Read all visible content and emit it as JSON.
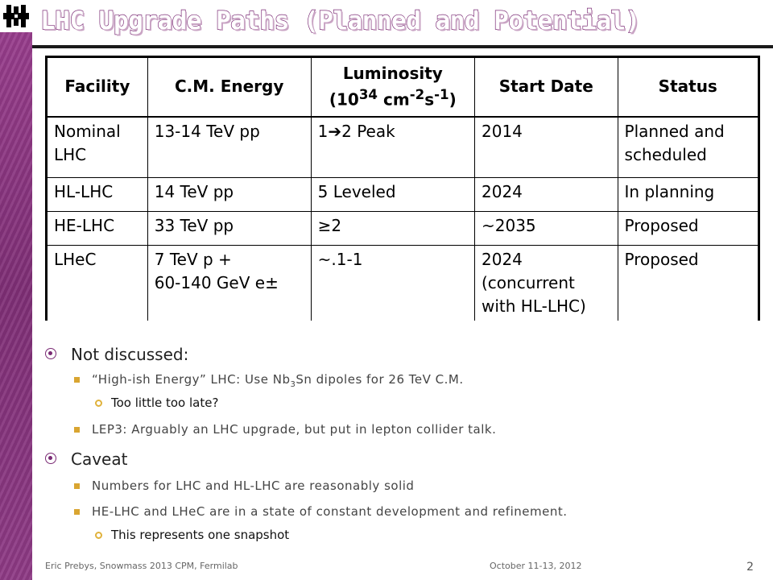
{
  "title": "LHC Upgrade Paths (Planned and Potential)",
  "table": {
    "headers": [
      {
        "text": "Facility"
      },
      {
        "text": "C.M. Energy"
      },
      {
        "line1": "Luminosity",
        "base": "(10",
        "sup1": "34",
        "mid": " cm",
        "sup2": "-2",
        "mid2": "s",
        "sup3": "-1",
        "end": ")"
      },
      {
        "text": "Start Date"
      },
      {
        "text": "Status"
      }
    ],
    "rows": [
      {
        "facility": "Nominal LHC",
        "energy": "13-14 TeV pp",
        "lumi": "1➔2 Peak",
        "date": "2014",
        "status": "Planned and scheduled"
      },
      {
        "facility": "HL-LHC",
        "energy": "14 TeV pp",
        "lumi": "5 Leveled",
        "date": "2024",
        "status": "In planning"
      },
      {
        "facility": "HE-LHC",
        "energy": "33 TeV pp",
        "lumi": "≥2",
        "date": "~2035",
        "status": "Proposed"
      },
      {
        "facility": "LHeC",
        "energy_line1": "7 TeV p +",
        "energy_line2": "60-140 GeV e±",
        "lumi": "~.1-1",
        "date_line1": "2024",
        "date_line2": "(concurrent",
        "date_line3": "with HL-LHC)",
        "status": "Proposed"
      }
    ]
  },
  "bullets": {
    "not_discussed": "Not discussed:",
    "item_a_pre": "“High-ish Energy” LHC: Use Nb",
    "item_a_sub": "3",
    "item_a_post": "Sn dipoles for 26 TeV C.M.",
    "item_a_sub_bullet": "Too little too late?",
    "item_b": "LEP3: Arguably an LHC upgrade, but put in lepton collider talk.",
    "caveat": "Caveat",
    "item_c": "Numbers for LHC and HL-LHC are reasonably solid",
    "item_d": "HE-LHC and LHeC are in a state of constant development and refinement.",
    "item_d_sub_bullet": "This represents one snapshot"
  },
  "footer": {
    "author": "Eric Prebys, Snowmass 2013 CPM, Fermilab",
    "date": "October 11-13, 2012",
    "page": "2"
  },
  "colors": {
    "sidebar": "#8e3a85",
    "bullet_primary": "#7a2a74",
    "bullet_secondary": "#d9a531"
  }
}
